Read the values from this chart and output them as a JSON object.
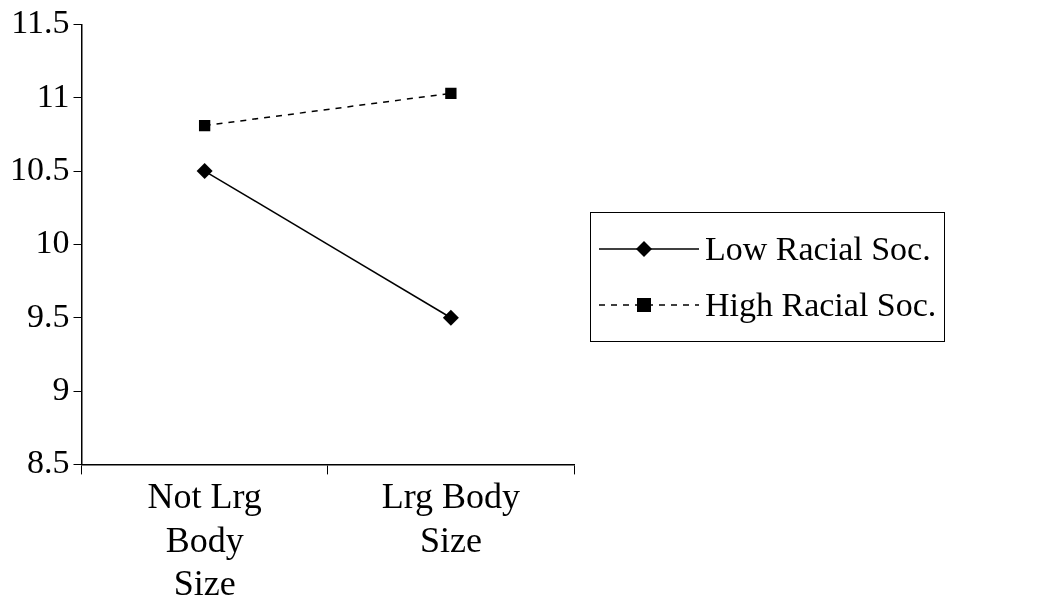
{
  "chart_data": {
    "type": "line",
    "categories": [
      "Not Lrg Body Size",
      "Lrg Body Size"
    ],
    "series": [
      {
        "name": "Low Racial Soc.",
        "color": "#000000",
        "values": [
          10.5,
          9.5
        ],
        "marker": "diamond",
        "line_style": "solid"
      },
      {
        "name": "High Racial Soc.",
        "color": "#000000",
        "values": [
          10.81,
          11.03
        ],
        "marker": "square",
        "line_style": "dashed"
      }
    ],
    "ylim": [
      8.5,
      11.5
    ],
    "yticks": [
      8.5,
      9,
      9.5,
      10,
      10.5,
      11,
      11.5
    ],
    "grid": false,
    "legend": "right"
  }
}
